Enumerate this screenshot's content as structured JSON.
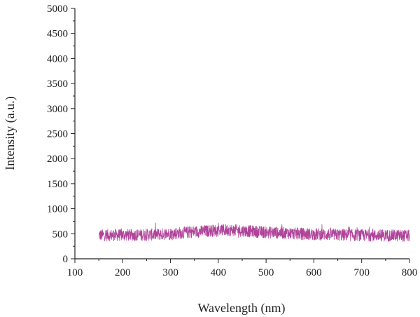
{
  "chart_data": {
    "type": "line",
    "title": "",
    "xlabel": "Wavelength (nm)",
    "ylabel": "Intensity (a.u.)",
    "xlim": [
      100,
      800
    ],
    "ylim": [
      0,
      5000
    ],
    "x_ticks": [
      100,
      200,
      300,
      400,
      500,
      600,
      700,
      800
    ],
    "y_ticks": [
      0,
      500,
      1000,
      1500,
      2000,
      2500,
      3000,
      3500,
      4000,
      4500,
      5000
    ],
    "grid": false,
    "legend": "none",
    "series": [
      {
        "color": "#b0449a",
        "x_range": [
          150,
          800
        ],
        "trend": {
          "x": [
            150,
            200,
            250,
            300,
            350,
            400,
            425,
            450,
            500,
            550,
            600,
            650,
            700,
            750,
            800
          ],
          "y": [
            470,
            475,
            480,
            500,
            540,
            570,
            575,
            560,
            530,
            510,
            490,
            480,
            470,
            465,
            460
          ]
        },
        "noise_amplitude": 120
      }
    ]
  }
}
